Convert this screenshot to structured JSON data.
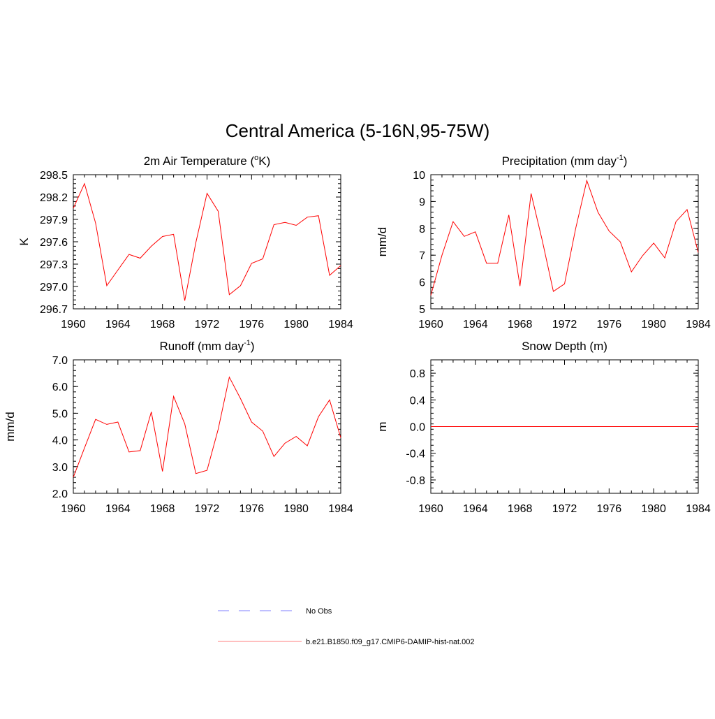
{
  "page_title": "Central America (5-16N,95-75W)",
  "colors": {
    "model": "#ff0000",
    "obs": "#9999ff",
    "axis": "#000000"
  },
  "legend": [
    {
      "label": "No Obs",
      "style": "dashed",
      "color": "#9999ff"
    },
    {
      "label": "b.e21.B1850.f09_g17.CMIP6-DAMIP-hist-nat.002",
      "style": "solid",
      "color": "#ff0000"
    }
  ],
  "chart_data": [
    {
      "type": "line",
      "title": "2m Air Temperature (",
      "title_sup": "o",
      "title_suffix": "K)",
      "ylabel": "K",
      "xlim": [
        1960,
        1984
      ],
      "ylim": [
        296.7,
        298.5
      ],
      "xticks": [
        "1960",
        "1964",
        "1968",
        "1972",
        "1976",
        "1980",
        "1984"
      ],
      "yticks": [
        "296.7",
        "297.0",
        "297.3",
        "297.6",
        "297.9",
        "298.2",
        "298.5"
      ],
      "x": [
        1960,
        1961,
        1962,
        1963,
        1964,
        1965,
        1966,
        1967,
        1968,
        1969,
        1970,
        1971,
        1972,
        1973,
        1974,
        1975,
        1976,
        1977,
        1978,
        1979,
        1980,
        1981,
        1982,
        1983,
        1984
      ],
      "series": [
        {
          "values": [
            298.05,
            298.38,
            297.85,
            297.01,
            297.22,
            297.43,
            297.38,
            297.54,
            297.67,
            297.7,
            296.81,
            297.59,
            298.25,
            298.01,
            296.89,
            297.01,
            297.31,
            297.37,
            297.83,
            297.86,
            297.82,
            297.93,
            297.95,
            297.15,
            297.28
          ]
        }
      ]
    },
    {
      "type": "line",
      "title": "Precipitation (mm day",
      "title_sup": "-1",
      "title_suffix": ")",
      "ylabel": "mm/d",
      "xlim": [
        1960,
        1984
      ],
      "ylim": [
        5,
        10
      ],
      "xticks": [
        "1960",
        "1964",
        "1968",
        "1972",
        "1976",
        "1980",
        "1984"
      ],
      "yticks": [
        "5",
        "6",
        "7",
        "8",
        "9",
        "10"
      ],
      "x": [
        1960,
        1961,
        1962,
        1963,
        1964,
        1965,
        1966,
        1967,
        1968,
        1969,
        1970,
        1971,
        1972,
        1973,
        1974,
        1975,
        1976,
        1977,
        1978,
        1979,
        1980,
        1981,
        1982,
        1983,
        1984
      ],
      "series": [
        {
          "values": [
            5.5,
            7.0,
            8.25,
            7.7,
            7.87,
            6.7,
            6.7,
            8.5,
            5.85,
            9.3,
            7.55,
            5.65,
            5.93,
            8.0,
            9.78,
            8.6,
            7.9,
            7.5,
            6.38,
            6.98,
            7.45,
            6.9,
            8.25,
            8.7,
            7.1
          ]
        }
      ]
    },
    {
      "type": "line",
      "title": "Runoff (mm day",
      "title_sup": "-1",
      "title_suffix": ")",
      "ylabel": "mm/d",
      "xlim": [
        1960,
        1984
      ],
      "ylim": [
        2.0,
        7.0
      ],
      "xticks": [
        "1960",
        "1964",
        "1968",
        "1972",
        "1976",
        "1980",
        "1984"
      ],
      "yticks": [
        "2.0",
        "3.0",
        "4.0",
        "5.0",
        "6.0",
        "7.0"
      ],
      "x": [
        1960,
        1961,
        1962,
        1963,
        1964,
        1965,
        1966,
        1967,
        1968,
        1969,
        1970,
        1971,
        1972,
        1973,
        1974,
        1975,
        1976,
        1977,
        1978,
        1979,
        1980,
        1981,
        1982,
        1983,
        1984
      ],
      "series": [
        {
          "values": [
            2.6,
            3.7,
            4.77,
            4.58,
            4.67,
            3.55,
            3.6,
            5.05,
            2.82,
            5.63,
            4.6,
            2.74,
            2.86,
            4.4,
            6.35,
            5.55,
            4.67,
            4.33,
            3.38,
            3.88,
            4.13,
            3.78,
            4.87,
            5.5,
            4.08
          ]
        }
      ]
    },
    {
      "type": "line",
      "title": "Snow Depth (m)",
      "title_sup": "",
      "title_suffix": "",
      "ylabel": "m",
      "xlim": [
        1960,
        1984
      ],
      "ylim": [
        -1.0,
        1.0
      ],
      "xticks": [
        "1960",
        "1964",
        "1968",
        "1972",
        "1976",
        "1980",
        "1984"
      ],
      "yticks": [
        "0.8",
        "0.4",
        "0.0",
        "-0.4",
        "-0.8"
      ],
      "ytick_values": [
        0.8,
        0.4,
        0.0,
        -0.4,
        -0.8
      ],
      "x": [
        1960,
        1961,
        1962,
        1963,
        1964,
        1965,
        1966,
        1967,
        1968,
        1969,
        1970,
        1971,
        1972,
        1973,
        1974,
        1975,
        1976,
        1977,
        1978,
        1979,
        1980,
        1981,
        1982,
        1983,
        1984
      ],
      "series": [
        {
          "values": [
            0,
            0,
            0,
            0,
            0,
            0,
            0,
            0,
            0,
            0,
            0,
            0,
            0,
            0,
            0,
            0,
            0,
            0,
            0,
            0,
            0,
            0,
            0,
            0,
            0
          ]
        }
      ]
    }
  ]
}
